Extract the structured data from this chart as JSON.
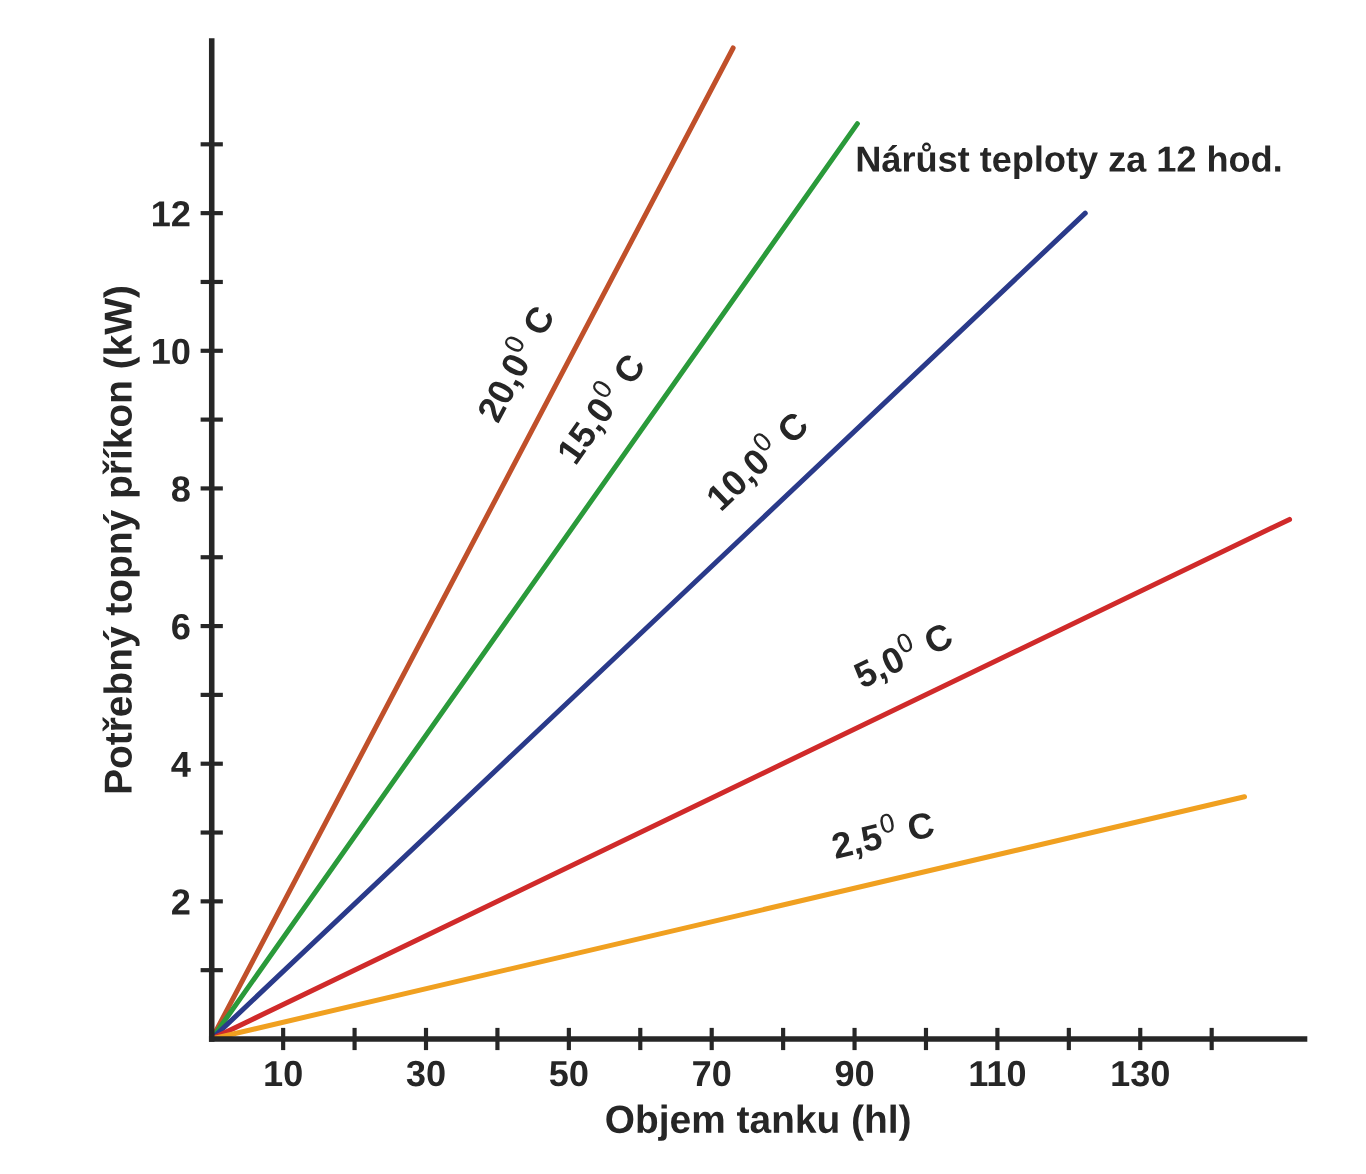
{
  "chart_data": {
    "type": "line",
    "xlabel": "Objem tanku (hl)",
    "ylabel": "Potřebný topný příkon (kW)",
    "annotations": [
      "Nárůst teploty za 12 hod."
    ],
    "series": [
      {
        "name": "20,0$^{0}$ C",
        "color": "#c0502a",
        "x": [
          0,
          73.0
        ],
        "values": [
          0,
          14.4
        ]
      },
      {
        "name": "15,0$^{0}$ C",
        "color": "#2a9a3a",
        "x": [
          0,
          90.4
        ],
        "values": [
          0,
          13.3
        ]
      },
      {
        "name": "10,0$^{0}$ C",
        "color": "#2a3a8a",
        "x": [
          0,
          122.3
        ],
        "values": [
          0,
          12.0
        ]
      },
      {
        "name": "5,0$^{0}$ C",
        "color": "#d02a2a",
        "x": [
          0,
          150.9
        ],
        "values": [
          0,
          7.55
        ]
      },
      {
        "name": "2,5$^{0}$ C",
        "color": "#f0a020",
        "x": [
          0,
          144.6
        ],
        "values": [
          0,
          3.52
        ]
      }
    ],
    "xlim": [
      0,
      153
    ],
    "ylim": [
      0,
      14.5
    ],
    "xticks": [
      {
        "value": 10,
        "label": "10"
      },
      {
        "value": 20,
        "label": null
      },
      {
        "value": 30,
        "label": "30"
      },
      {
        "value": 40,
        "label": null
      },
      {
        "value": 50,
        "label": "50"
      },
      {
        "value": 60,
        "label": null
      },
      {
        "value": 70,
        "label": "70"
      },
      {
        "value": 80,
        "label": null
      },
      {
        "value": 90,
        "label": "90"
      },
      {
        "value": 100,
        "label": null
      },
      {
        "value": 110,
        "label": "110"
      },
      {
        "value": 120,
        "label": null
      },
      {
        "value": 130,
        "label": "130"
      },
      {
        "value": 140,
        "label": null
      }
    ],
    "yticks": [
      {
        "value": 1,
        "label": null
      },
      2,
      {
        "value": 3,
        "label": null
      },
      4,
      {
        "value": 5,
        "label": null
      },
      6,
      {
        "value": 7,
        "label": null
      },
      8,
      {
        "value": 9,
        "label": null
      },
      10,
      {
        "value": 11,
        "label": null
      },
      12,
      {
        "value": 13,
        "label": null
      }
    ],
    "grid": false,
    "marker": "none",
    "line_style": "solid",
    "legend": false
  }
}
